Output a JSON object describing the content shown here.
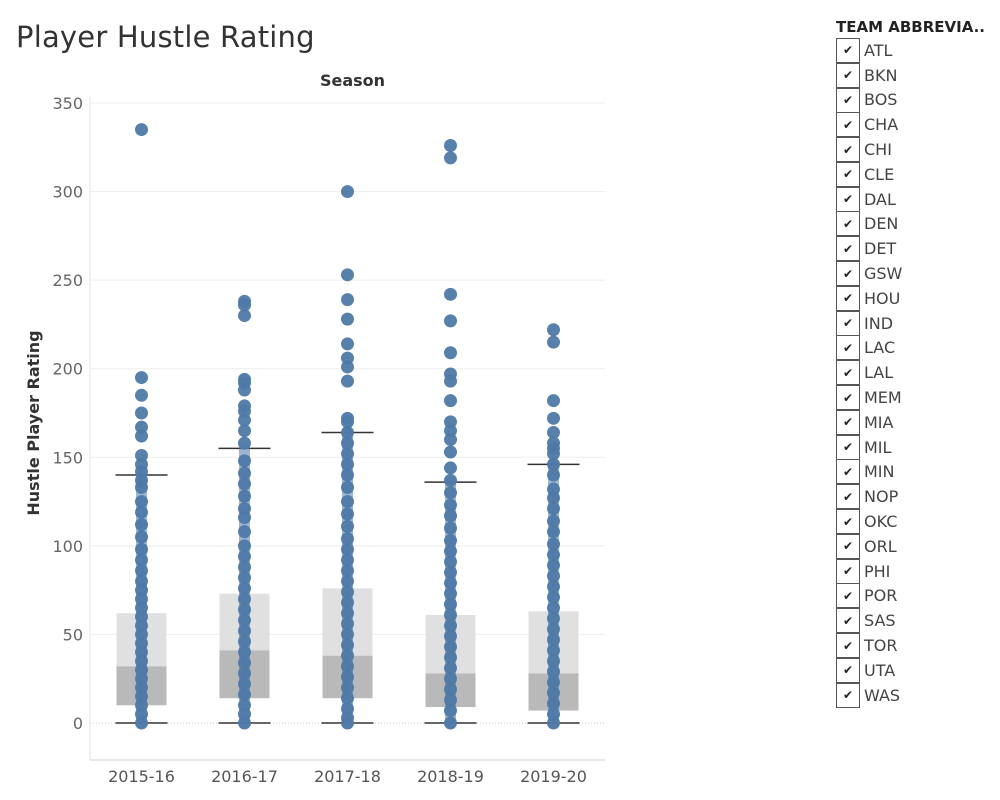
{
  "page": {
    "title": "Player Hustle Rating"
  },
  "chart_data": {
    "type": "boxplot",
    "title": "Player Hustle Rating",
    "column_header": "Season",
    "xlabel": "",
    "ylabel": "Hustle Player Rating",
    "ylim": [
      -15,
      355
    ],
    "yticks": [
      0,
      50,
      100,
      150,
      200,
      250,
      300,
      350
    ],
    "categories": [
      "2015-16",
      "2016-17",
      "2017-18",
      "2018-19",
      "2019-20"
    ],
    "grid": true,
    "colors": {
      "points": "#4e79a7",
      "box_upper": "#e0e0e0",
      "box_lower": "#b9b9b9",
      "whisker": "#333333"
    },
    "boxes": [
      {
        "season": "2015-16",
        "lower_whisker": 0,
        "q1": 10,
        "median": 32,
        "q3": 62,
        "upper_whisker": 140
      },
      {
        "season": "2016-17",
        "lower_whisker": 0,
        "q1": 14,
        "median": 41,
        "q3": 73,
        "upper_whisker": 155
      },
      {
        "season": "2017-18",
        "lower_whisker": 0,
        "q1": 14,
        "median": 38,
        "q3": 76,
        "upper_whisker": 164
      },
      {
        "season": "2018-19",
        "lower_whisker": 0,
        "q1": 9,
        "median": 28,
        "q3": 61,
        "upper_whisker": 136
      },
      {
        "season": "2019-20",
        "lower_whisker": 0,
        "q1": 7,
        "median": 28,
        "q3": 63,
        "upper_whisker": 146
      }
    ],
    "points": [
      {
        "season": "2015-16",
        "dense_range": [
          0,
          140
        ],
        "values": [
          335,
          195,
          185,
          175,
          167,
          162,
          151,
          146,
          142,
          137,
          133,
          125,
          119,
          112,
          105,
          98,
          92,
          86,
          80,
          75,
          70,
          65,
          60,
          55,
          50,
          45,
          40,
          35,
          30,
          25,
          20,
          15,
          10,
          5,
          0
        ]
      },
      {
        "season": "2016-17",
        "dense_range": [
          0,
          155
        ],
        "values": [
          238,
          236,
          230,
          194,
          192,
          188,
          179,
          176,
          171,
          165,
          158,
          148,
          141,
          135,
          128,
          121,
          116,
          108,
          100,
          94,
          88,
          82,
          76,
          70,
          64,
          58,
          52,
          46,
          40,
          34,
          28,
          22,
          16,
          10,
          5,
          0
        ]
      },
      {
        "season": "2017-18",
        "dense_range": [
          0,
          164
        ],
        "values": [
          300,
          253,
          239,
          228,
          214,
          206,
          201,
          193,
          172,
          170,
          164,
          158,
          152,
          146,
          140,
          133,
          125,
          118,
          111,
          104,
          98,
          92,
          86,
          80,
          74,
          68,
          62,
          56,
          50,
          44,
          38,
          32,
          26,
          20,
          14,
          8,
          3,
          0
        ]
      },
      {
        "season": "2018-19",
        "dense_range": [
          0,
          136
        ],
        "values": [
          326,
          319,
          242,
          227,
          209,
          197,
          193,
          182,
          170,
          165,
          160,
          153,
          144,
          137,
          130,
          123,
          117,
          110,
          103,
          97,
          91,
          85,
          79,
          73,
          67,
          61,
          55,
          49,
          43,
          37,
          31,
          25,
          19,
          13,
          7,
          0
        ]
      },
      {
        "season": "2019-20",
        "dense_range": [
          0,
          146
        ],
        "values": [
          222,
          215,
          182,
          172,
          164,
          158,
          155,
          152,
          146,
          140,
          132,
          127,
          121,
          114,
          108,
          101,
          95,
          89,
          83,
          77,
          71,
          65,
          59,
          53,
          47,
          41,
          35,
          29,
          23,
          17,
          11,
          5,
          0
        ]
      }
    ]
  },
  "legend": {
    "title": "TEAM ABBREVIA..",
    "check_glyph": "✔",
    "items": [
      "ATL",
      "BKN",
      "BOS",
      "CHA",
      "CHI",
      "CLE",
      "DAL",
      "DEN",
      "DET",
      "GSW",
      "HOU",
      "IND",
      "LAC",
      "LAL",
      "MEM",
      "MIA",
      "MIL",
      "MIN",
      "NOP",
      "OKC",
      "ORL",
      "PHI",
      "POR",
      "SAS",
      "TOR",
      "UTA",
      "WAS"
    ]
  }
}
